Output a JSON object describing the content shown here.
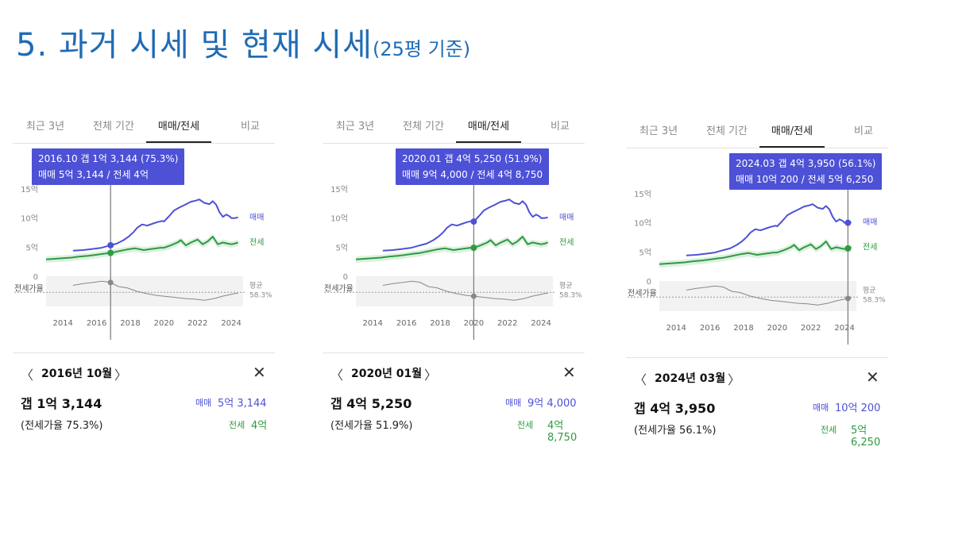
{
  "title": {
    "main": "5. 과거 시세 및 현재 시세",
    "sub": "(25평 기준)"
  },
  "tabs": [
    "최근 3년",
    "전체 기간",
    "매매/전세",
    "비교"
  ],
  "active_tab": "매매/전세",
  "colors": {
    "sale": "#4d51d6",
    "jeonse": "#2e9a41",
    "ratio": "#888888",
    "accent": "#1f6cb5"
  },
  "icons": {
    "prev": "chevron-left-icon",
    "next": "chevron-right-icon",
    "close": "close-icon"
  },
  "panels": [
    {
      "tooltip": {
        "line1": "2016.10  갭 1억 3,144 (75.3%)",
        "line2": "매매 5억 3,144 / 전세 4억"
      },
      "month_label": "2016년 10월",
      "gap": "갭 1억 3,144",
      "ratio": "(전세가율 75.3%)",
      "sale_label": "매매",
      "sale_value": "5억 3,144",
      "jeonse_label": "전세",
      "jeonse_value": "4억",
      "selected_year": 2016.83
    },
    {
      "tooltip": {
        "line1": "2020.01  갭 4억 5,250 (51.9%)",
        "line2": "매매 9억 4,000 / 전세 4억 8,750"
      },
      "month_label": "2020년 01월",
      "gap": "갭 4억 5,250",
      "ratio": "(전세가율 51.9%)",
      "sale_label": "매매",
      "sale_value": "9억 4,000",
      "jeonse_label": "전세",
      "jeonse_value": "4억 8,750",
      "selected_year": 2020.0
    },
    {
      "tooltip": {
        "line1": "2024.03  갭 4억 3,950 (56.1%)",
        "line2": "매매 10억 200 / 전세 5억 6,250"
      },
      "month_label": "2024년 03월",
      "gap": "갭 4억 3,950",
      "ratio": "(전세가율 56.1%)",
      "sale_label": "매매",
      "sale_value": "10억 200",
      "jeonse_label": "전세",
      "jeonse_value": "5억 6,250",
      "selected_year": 2024.2
    }
  ],
  "chart_data": {
    "type": "line",
    "y_ticks": [
      "15억",
      "10억",
      "5억",
      "0"
    ],
    "y_values": [
      15,
      10,
      5,
      0
    ],
    "x_ticks": [
      "2014",
      "2016",
      "2018",
      "2020",
      "2022",
      "2024"
    ],
    "xlim": [
      2013.0,
      2024.7
    ],
    "ylim": [
      0,
      15
    ],
    "series_labels": {
      "sale": "매매",
      "jeonse": "전세"
    },
    "ratio_label": "전세가율",
    "avg_label": "평균",
    "avg_value": "58.3%",
    "series": [
      {
        "name": "매매",
        "x": [
          2014.6,
          2015.2,
          2015.8,
          2016.3,
          2016.8,
          2017.2,
          2017.6,
          2017.9,
          2018.2,
          2018.4,
          2018.7,
          2019.0,
          2019.3,
          2019.6,
          2019.9,
          2020.0,
          2020.3,
          2020.6,
          2020.9,
          2021.2,
          2021.6,
          2021.9,
          2022.1,
          2022.4,
          2022.7,
          2022.9,
          2023.1,
          2023.3,
          2023.5,
          2023.7,
          2023.9,
          2024.0,
          2024.2,
          2024.4
        ],
        "values": [
          4.4,
          4.5,
          4.7,
          4.9,
          5.3,
          5.6,
          6.2,
          6.8,
          7.6,
          8.3,
          8.9,
          8.7,
          9.0,
          9.3,
          9.5,
          9.4,
          10.3,
          11.3,
          11.8,
          12.2,
          12.8,
          13.0,
          13.2,
          12.6,
          12.4,
          12.9,
          12.3,
          11.0,
          10.2,
          10.6,
          10.3,
          10.0,
          10.0,
          10.1
        ]
      },
      {
        "name": "전세",
        "x": [
          2013.0,
          2013.5,
          2014.0,
          2014.5,
          2015.0,
          2015.5,
          2016.0,
          2016.5,
          2016.8,
          2017.3,
          2017.8,
          2018.3,
          2018.8,
          2019.3,
          2019.8,
          2020.0,
          2020.4,
          2020.8,
          2021.0,
          2021.3,
          2021.6,
          2022.0,
          2022.3,
          2022.6,
          2022.9,
          2023.2,
          2023.5,
          2023.8,
          2024.0,
          2024.2,
          2024.4
        ],
        "values": [
          2.9,
          3.0,
          3.1,
          3.2,
          3.4,
          3.5,
          3.7,
          3.9,
          4.0,
          4.3,
          4.6,
          4.8,
          4.5,
          4.7,
          4.9,
          4.9,
          5.3,
          5.8,
          6.2,
          5.3,
          5.8,
          6.3,
          5.5,
          6.0,
          6.8,
          5.5,
          5.8,
          5.6,
          5.5,
          5.6,
          5.8
        ]
      },
      {
        "name": "전세가율",
        "x": [
          2014.6,
          2015.2,
          2015.8,
          2016.3,
          2016.8,
          2017.3,
          2017.8,
          2018.4,
          2019.0,
          2019.6,
          2020.0,
          2020.6,
          2021.2,
          2021.8,
          2022.4,
          2023.0,
          2023.5,
          2024.0,
          2024.2,
          2024.4
        ],
        "values": [
          70,
          73,
          75,
          77,
          75.3,
          68,
          66,
          60,
          56,
          53,
          51.9,
          50,
          48,
          47,
          45,
          48,
          52,
          55,
          56.1,
          57
        ]
      }
    ]
  }
}
